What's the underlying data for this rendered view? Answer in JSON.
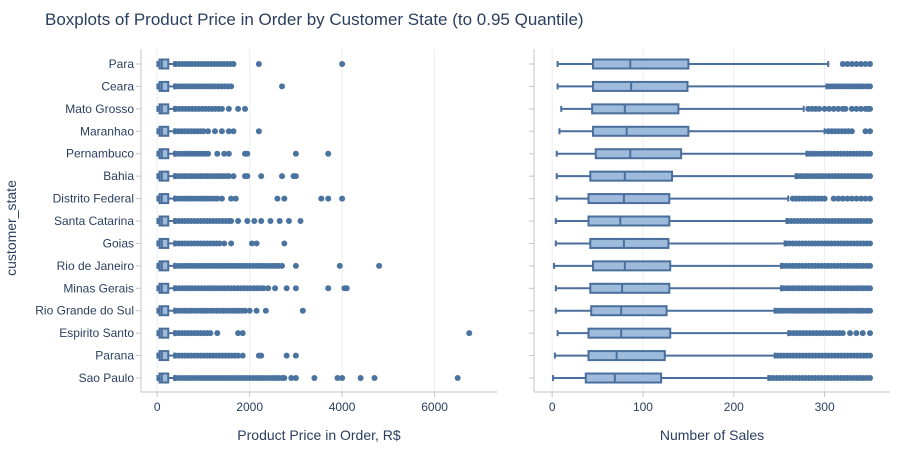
{
  "chart_data": {
    "type": "box",
    "title": "Boxplots of Product Price in Order by Customer State (to 0.95 Quantile)",
    "colors": {
      "box_fill": "#9ebbdc",
      "box_line": "#4a6f9c",
      "outlier": "#4a73a0",
      "grid": "#ebedf0",
      "axis_line": "#c0c4cc",
      "text": "#2a3f5f"
    },
    "ylabel": "customer_state",
    "categories": [
      "Para",
      "Ceara",
      "Mato Grosso",
      "Maranhao",
      "Pernambuco",
      "Bahia",
      "Distrito Federal",
      "Santa Catarina",
      "Goias",
      "Rio de Janeiro",
      "Minas Gerais",
      "Rio Grande do Sul",
      "Espirito Santo",
      "Parana",
      "Sao Paulo"
    ],
    "panels": [
      {
        "xlabel": "Product Price in Order, R$",
        "xlim": [
          -350,
          7350
        ],
        "xticks": [
          0,
          2000,
          4000,
          6000
        ],
        "xticklabels": [
          "0",
          "2000",
          "4000",
          "6000"
        ],
        "boxes": [
          {
            "min": 5,
            "q1": 50,
            "median": 100,
            "q3": 240,
            "max": 370,
            "outliers": [
              [
                400,
                1650
              ],
              [
                2200,
                4000
              ]
            ]
          },
          {
            "min": 5,
            "q1": 50,
            "median": 100,
            "q3": 240,
            "max": 370,
            "outliers": [
              [
                400,
                1600
              ],
              [
                2700
              ]
            ]
          },
          {
            "min": 5,
            "q1": 50,
            "median": 100,
            "q3": 240,
            "max": 370,
            "outliers": [
              [
                400,
                1400
              ],
              [
                1550,
                1750,
                1900
              ]
            ]
          },
          {
            "min": 5,
            "q1": 50,
            "median": 100,
            "q3": 240,
            "max": 370,
            "outliers": [
              [
                400,
                1000
              ],
              [
                1100,
                1250,
                1400,
                1550,
                1650,
                2200
              ]
            ]
          },
          {
            "min": 5,
            "q1": 50,
            "median": 100,
            "q3": 240,
            "max": 370,
            "outliers": [
              [
                400,
                1100
              ],
              [
                1300,
                1450,
                1550,
                1900,
                1950,
                3000,
                3700
              ]
            ]
          },
          {
            "min": 5,
            "q1": 50,
            "median": 100,
            "q3": 240,
            "max": 370,
            "outliers": [
              [
                400,
                1550
              ],
              [
                1650,
                1900,
                1950,
                2250,
                2700,
                2950,
                3000
              ]
            ]
          },
          {
            "min": 5,
            "q1": 50,
            "median": 100,
            "q3": 240,
            "max": 370,
            "outliers": [
              [
                400,
                1300
              ],
              [
                1400,
                1600,
                1700,
                2600,
                2750,
                3550,
                3700,
                4000
              ]
            ]
          },
          {
            "min": 5,
            "q1": 50,
            "median": 100,
            "q3": 240,
            "max": 370,
            "outliers": [
              [
                400,
                1550
              ],
              [
                1600,
                1750,
                1950,
                2100,
                2250,
                2450,
                2650,
                2850,
                3100
              ]
            ]
          },
          {
            "min": 5,
            "q1": 50,
            "median": 100,
            "q3": 240,
            "max": 370,
            "outliers": [
              [
                400,
                1350
              ],
              [
                1450,
                1600,
                2050,
                2150,
                2750
              ]
            ]
          },
          {
            "min": 5,
            "q1": 50,
            "median": 100,
            "q3": 240,
            "max": 370,
            "outliers": [
              [
                400,
                2700
              ],
              [
                3000,
                3950,
                4800
              ]
            ]
          },
          {
            "min": 5,
            "q1": 50,
            "median": 100,
            "q3": 240,
            "max": 370,
            "outliers": [
              [
                400,
                2300
              ],
              [
                2400,
                2550,
                2800,
                3000,
                3700,
                4050,
                4100
              ]
            ]
          },
          {
            "min": 5,
            "q1": 50,
            "median": 100,
            "q3": 240,
            "max": 370,
            "outliers": [
              [
                400,
                1900
              ],
              [
                2000,
                2150,
                2350,
                3150
              ]
            ]
          },
          {
            "min": 5,
            "q1": 50,
            "median": 100,
            "q3": 240,
            "max": 370,
            "outliers": [
              [
                400,
                1150
              ],
              [
                1300,
                1750,
                1850,
                6750
              ]
            ]
          },
          {
            "min": 5,
            "q1": 50,
            "median": 100,
            "q3": 240,
            "max": 370,
            "outliers": [
              [
                400,
                1750
              ],
              [
                1850,
                2200,
                2250,
                2800,
                3000
              ]
            ]
          },
          {
            "min": 5,
            "q1": 50,
            "median": 100,
            "q3": 240,
            "max": 370,
            "outliers": [
              [
                400,
                2700
              ],
              [
                2750,
                2900,
                3000,
                3400,
                3900,
                4000,
                4400,
                4700,
                6500
              ]
            ]
          }
        ]
      },
      {
        "xlabel": "Number of Sales",
        "xlim": [
          -20,
          372
        ],
        "xticks": [
          0,
          100,
          200,
          300
        ],
        "xticklabels": [
          "0",
          "100",
          "200",
          "300"
        ],
        "boxes": [
          {
            "min": 6,
            "q1": 45,
            "median": 86,
            "q3": 150,
            "max": 304,
            "outliers": [
              [],
              [
                320,
                325,
                330,
                335,
                340,
                345,
                350
              ]
            ]
          },
          {
            "min": 6,
            "q1": 45,
            "median": 87,
            "q3": 149,
            "max": 302,
            "outliers": [
              [
                305,
                350
              ],
              []
            ]
          },
          {
            "min": 10,
            "q1": 44,
            "median": 80,
            "q3": 139,
            "max": 277,
            "outliers": [
              [],
              [
                282,
                286,
                290,
                294,
                300,
                305,
                310,
                315,
                320,
                323,
                330,
                335,
                340,
                345,
                348,
                350
              ]
            ]
          },
          {
            "min": 8,
            "q1": 45,
            "median": 82,
            "q3": 150,
            "max": 300,
            "outliers": [
              [
                304,
                330
              ],
              [
                345,
                350
              ]
            ]
          },
          {
            "min": 5,
            "q1": 48,
            "median": 86,
            "q3": 142,
            "max": 280,
            "outliers": [
              [
                282,
                350
              ],
              []
            ]
          },
          {
            "min": 5,
            "q1": 42,
            "median": 80,
            "q3": 132,
            "max": 268,
            "outliers": [
              [
                270,
                350
              ],
              []
            ]
          },
          {
            "min": 5,
            "q1": 40,
            "median": 79,
            "q3": 129,
            "max": 260,
            "outliers": [
              [
                265,
                300
              ],
              [
                310,
                315,
                320,
                325,
                330,
                335,
                340,
                345,
                350
              ]
            ]
          },
          {
            "min": 4,
            "q1": 40,
            "median": 75,
            "q3": 129,
            "max": 258,
            "outliers": [
              [
                260,
                350
              ],
              []
            ]
          },
          {
            "min": 4,
            "q1": 42,
            "median": 79,
            "q3": 128,
            "max": 256,
            "outliers": [
              [
                258,
                350
              ],
              []
            ]
          },
          {
            "min": 2,
            "q1": 45,
            "median": 80,
            "q3": 130,
            "max": 252,
            "outliers": [
              [
                254,
                350
              ],
              []
            ]
          },
          {
            "min": 4,
            "q1": 42,
            "median": 77,
            "q3": 129,
            "max": 252,
            "outliers": [
              [
                254,
                350
              ],
              []
            ]
          },
          {
            "min": 4,
            "q1": 43,
            "median": 76,
            "q3": 126,
            "max": 245,
            "outliers": [
              [
                248,
                350
              ],
              []
            ]
          },
          {
            "min": 6,
            "q1": 40,
            "median": 76,
            "q3": 130,
            "max": 260,
            "outliers": [
              [
                262,
                320
              ],
              [
                328,
                335,
                342,
                350
              ]
            ]
          },
          {
            "min": 3,
            "q1": 40,
            "median": 71,
            "q3": 124,
            "max": 245,
            "outliers": [
              [
                248,
                350
              ],
              []
            ]
          },
          {
            "min": 1,
            "q1": 37,
            "median": 69,
            "q3": 120,
            "max": 238,
            "outliers": [
              [
                240,
                350
              ],
              []
            ]
          }
        ]
      }
    ]
  }
}
